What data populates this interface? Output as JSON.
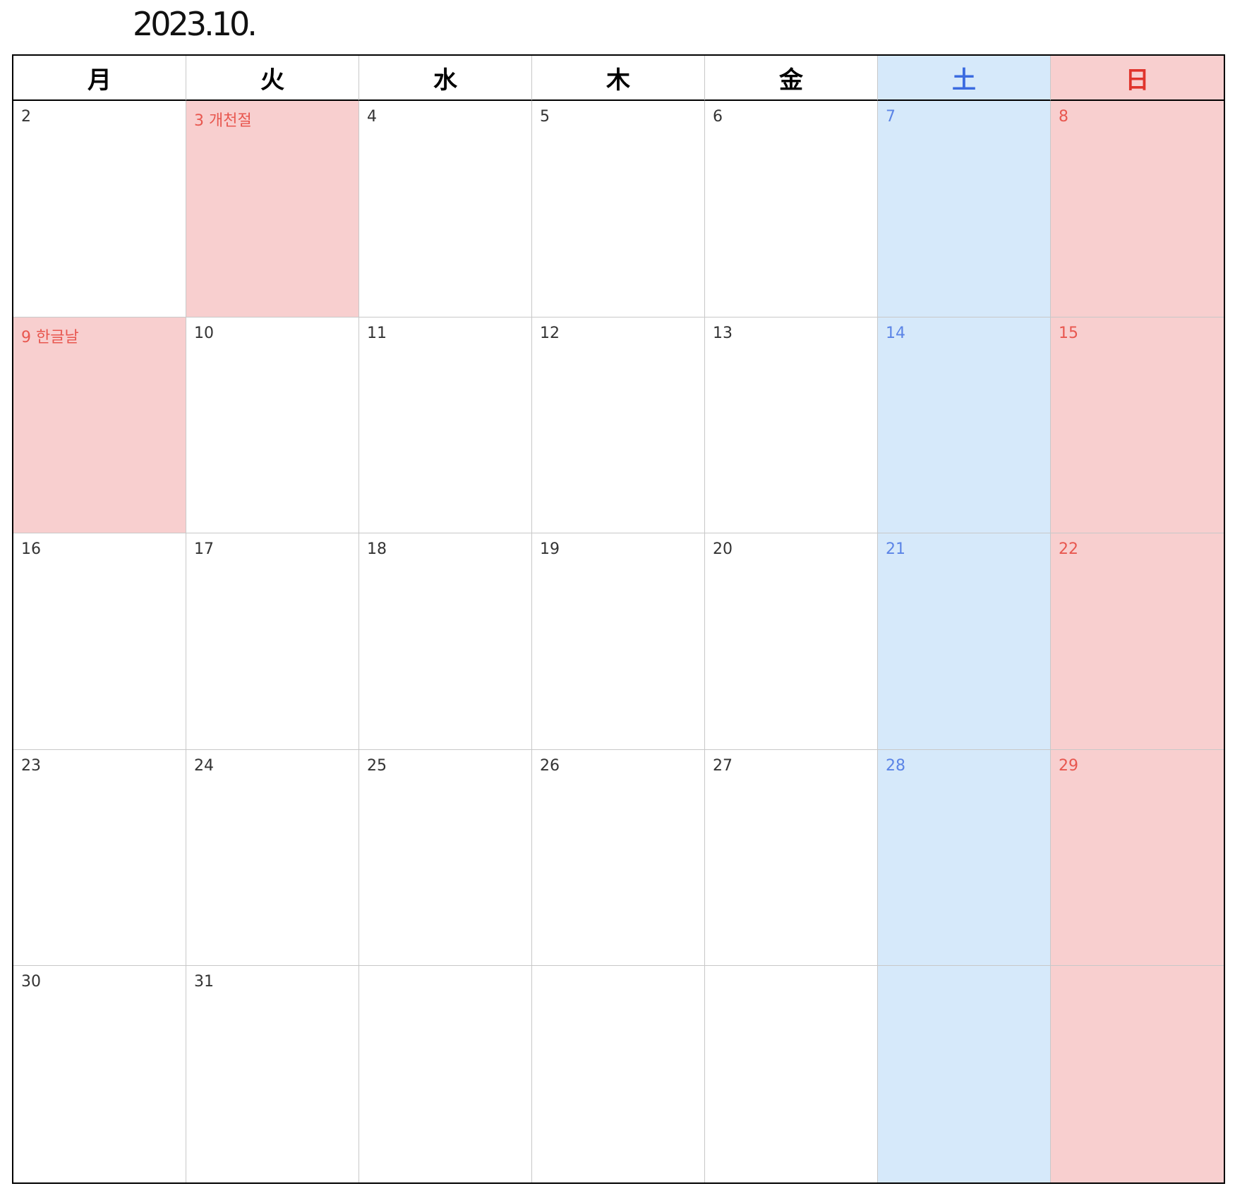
{
  "title": "2023.10.",
  "weekdays": [
    "月",
    "火",
    "水",
    "木",
    "金",
    "土",
    "日"
  ],
  "colors": {
    "saturday_bg": "#d6e9fa",
    "saturday_text": "#3b6be0",
    "sunday_bg": "#f8cfcf",
    "sunday_text": "#e0342c",
    "holiday_bg": "#f8cfcf",
    "holiday_text": "#e8574f"
  },
  "weeks": [
    [
      {
        "label": "2",
        "holiday": false
      },
      {
        "label": "3 개천절",
        "holiday": true
      },
      {
        "label": "4",
        "holiday": false
      },
      {
        "label": "5",
        "holiday": false
      },
      {
        "label": "6",
        "holiday": false
      },
      {
        "label": "7",
        "holiday": false
      },
      {
        "label": "8",
        "holiday": false
      }
    ],
    [
      {
        "label": "9 한글날",
        "holiday": true
      },
      {
        "label": "10",
        "holiday": false
      },
      {
        "label": "11",
        "holiday": false
      },
      {
        "label": "12",
        "holiday": false
      },
      {
        "label": "13",
        "holiday": false
      },
      {
        "label": "14",
        "holiday": false
      },
      {
        "label": "15",
        "holiday": false
      }
    ],
    [
      {
        "label": "16",
        "holiday": false
      },
      {
        "label": "17",
        "holiday": false
      },
      {
        "label": "18",
        "holiday": false
      },
      {
        "label": "19",
        "holiday": false
      },
      {
        "label": "20",
        "holiday": false
      },
      {
        "label": "21",
        "holiday": false
      },
      {
        "label": "22",
        "holiday": false
      }
    ],
    [
      {
        "label": "23",
        "holiday": false
      },
      {
        "label": "24",
        "holiday": false
      },
      {
        "label": "25",
        "holiday": false
      },
      {
        "label": "26",
        "holiday": false
      },
      {
        "label": "27",
        "holiday": false
      },
      {
        "label": "28",
        "holiday": false
      },
      {
        "label": "29",
        "holiday": false
      }
    ],
    [
      {
        "label": "30",
        "holiday": false
      },
      {
        "label": "31",
        "holiday": false
      },
      {
        "label": "",
        "holiday": false
      },
      {
        "label": "",
        "holiday": false
      },
      {
        "label": "",
        "holiday": false
      },
      {
        "label": "",
        "holiday": false
      },
      {
        "label": "",
        "holiday": false
      }
    ]
  ]
}
